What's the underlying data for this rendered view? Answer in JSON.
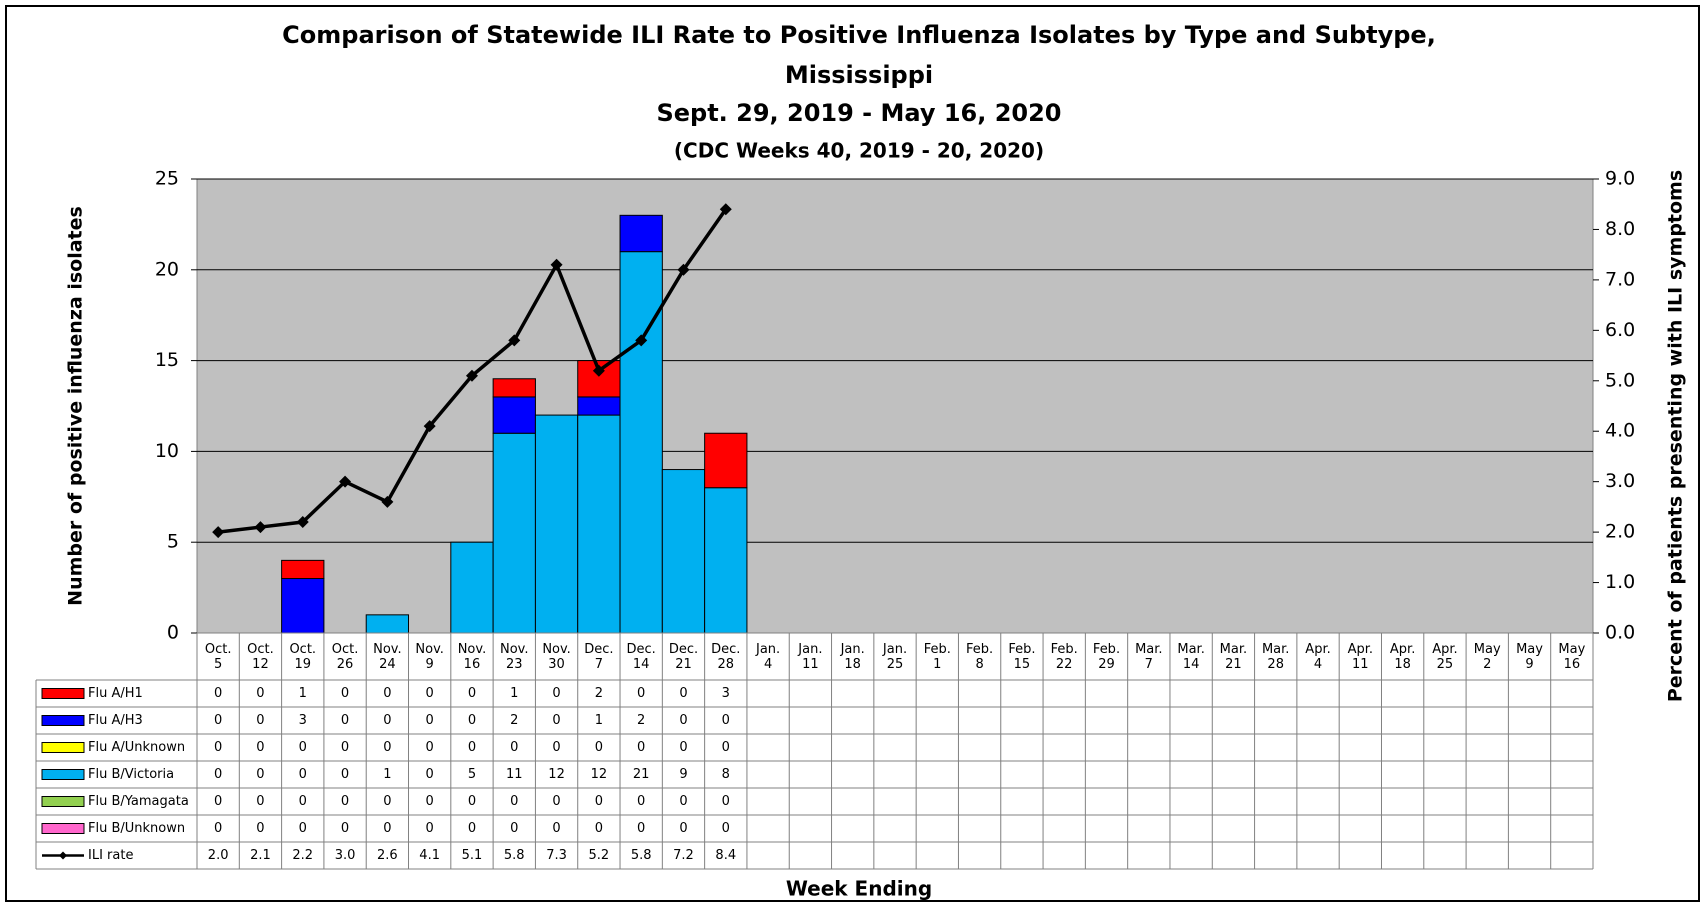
{
  "chart_data": {
    "type": "bar",
    "title": [
      "Comparison of Statewide ILI Rate to Positive Influenza Isolates by Type and Subtype,",
      "Mississippi",
      "Sept. 29, 2019 - May 16, 2020",
      "(CDC Weeks 40, 2019 - 20, 2020)"
    ],
    "y_label": "Number of positive influenza isolates",
    "y2_label": "Percent of patients presenting with ILI symptoms",
    "x_label": "Week Ending",
    "categories": [
      "Oct. 5",
      "Oct. 12",
      "Oct. 19",
      "Oct. 26",
      "Nov. 24",
      "Nov. 9",
      "Nov. 16",
      "Nov. 23",
      "Nov. 30",
      "Dec. 7",
      "Dec. 14",
      "Dec. 21",
      "Dec. 28",
      "Jan. 4",
      "Jan. 11",
      "Jan. 18",
      "Jan. 25",
      "Feb. 1",
      "Feb. 8",
      "Feb. 15",
      "Feb. 22",
      "Feb. 29",
      "Mar. 7",
      "Mar. 14",
      "Mar. 21",
      "Mar. 28",
      "Apr. 4",
      "Apr. 11",
      "Apr. 18",
      "Apr. 25",
      "May 2",
      "May 9",
      "May 16"
    ],
    "series": [
      {
        "name": "Flu A/H1",
        "color": "#ff0000",
        "values": [
          0,
          0,
          1,
          0,
          0,
          0,
          0,
          1,
          0,
          2,
          0,
          0,
          3,
          null,
          null,
          null,
          null,
          null,
          null,
          null,
          null,
          null,
          null,
          null,
          null,
          null,
          null,
          null,
          null,
          null,
          null,
          null,
          null
        ]
      },
      {
        "name": "Flu A/H3",
        "color": "#0000ff",
        "values": [
          0,
          0,
          3,
          0,
          0,
          0,
          0,
          2,
          0,
          1,
          2,
          0,
          0,
          null,
          null,
          null,
          null,
          null,
          null,
          null,
          null,
          null,
          null,
          null,
          null,
          null,
          null,
          null,
          null,
          null,
          null,
          null,
          null
        ]
      },
      {
        "name": "Flu A/Unknown",
        "color": "#ffff00",
        "values": [
          0,
          0,
          0,
          0,
          0,
          0,
          0,
          0,
          0,
          0,
          0,
          0,
          0,
          null,
          null,
          null,
          null,
          null,
          null,
          null,
          null,
          null,
          null,
          null,
          null,
          null,
          null,
          null,
          null,
          null,
          null,
          null,
          null
        ]
      },
      {
        "name": "Flu B/Victoria",
        "color": "#00b0f0",
        "values": [
          0,
          0,
          0,
          0,
          1,
          0,
          5,
          11,
          12,
          12,
          21,
          9,
          8,
          null,
          null,
          null,
          null,
          null,
          null,
          null,
          null,
          null,
          null,
          null,
          null,
          null,
          null,
          null,
          null,
          null,
          null,
          null,
          null
        ]
      },
      {
        "name": "Flu B/Yamagata",
        "color": "#92d050",
        "values": [
          0,
          0,
          0,
          0,
          0,
          0,
          0,
          0,
          0,
          0,
          0,
          0,
          0,
          null,
          null,
          null,
          null,
          null,
          null,
          null,
          null,
          null,
          null,
          null,
          null,
          null,
          null,
          null,
          null,
          null,
          null,
          null,
          null
        ]
      },
      {
        "name": "Flu B/Unknown",
        "color": "#ff66cc",
        "values": [
          0,
          0,
          0,
          0,
          0,
          0,
          0,
          0,
          0,
          0,
          0,
          0,
          0,
          null,
          null,
          null,
          null,
          null,
          null,
          null,
          null,
          null,
          null,
          null,
          null,
          null,
          null,
          null,
          null,
          null,
          null,
          null,
          null
        ]
      },
      {
        "name": "ILI rate",
        "type": "line",
        "axis": "y2",
        "color": "#000000",
        "values": [
          2.0,
          2.1,
          2.2,
          3.0,
          2.6,
          4.1,
          5.1,
          5.8,
          7.3,
          5.2,
          5.8,
          7.2,
          8.4,
          null,
          null,
          null,
          null,
          null,
          null,
          null,
          null,
          null,
          null,
          null,
          null,
          null,
          null,
          null,
          null,
          null,
          null,
          null,
          null
        ],
        "value_labels": [
          "2.0",
          "2.1",
          "2.2",
          "3.0",
          "2.6",
          "4.1",
          "5.1",
          "5.8",
          "7.3",
          "5.2",
          "5.8",
          "7.2",
          "8.4",
          null,
          null,
          null,
          null,
          null,
          null,
          null,
          null,
          null,
          null,
          null,
          null,
          null,
          null,
          null,
          null,
          null,
          null,
          null,
          null
        ]
      }
    ],
    "ylim": [
      0,
      25
    ],
    "yticks": [
      0,
      5,
      10,
      15,
      20,
      25
    ],
    "y2lim": [
      0,
      9
    ],
    "y2ticks": [
      {
        "value": 0,
        "label": "0.0"
      },
      {
        "value": 1,
        "label": "1.0"
      },
      {
        "value": 2,
        "label": "2.0"
      },
      {
        "value": 3,
        "label": "3.0"
      },
      {
        "value": 4,
        "label": "4.0"
      },
      {
        "value": 5,
        "label": "5.0"
      },
      {
        "value": 6,
        "label": "6.0"
      },
      {
        "value": 7,
        "label": "7.0"
      },
      {
        "value": 8,
        "label": "8.0"
      },
      {
        "value": 9,
        "label": "9.0"
      }
    ],
    "grid": true,
    "plot_background": "#c0c0c0"
  }
}
